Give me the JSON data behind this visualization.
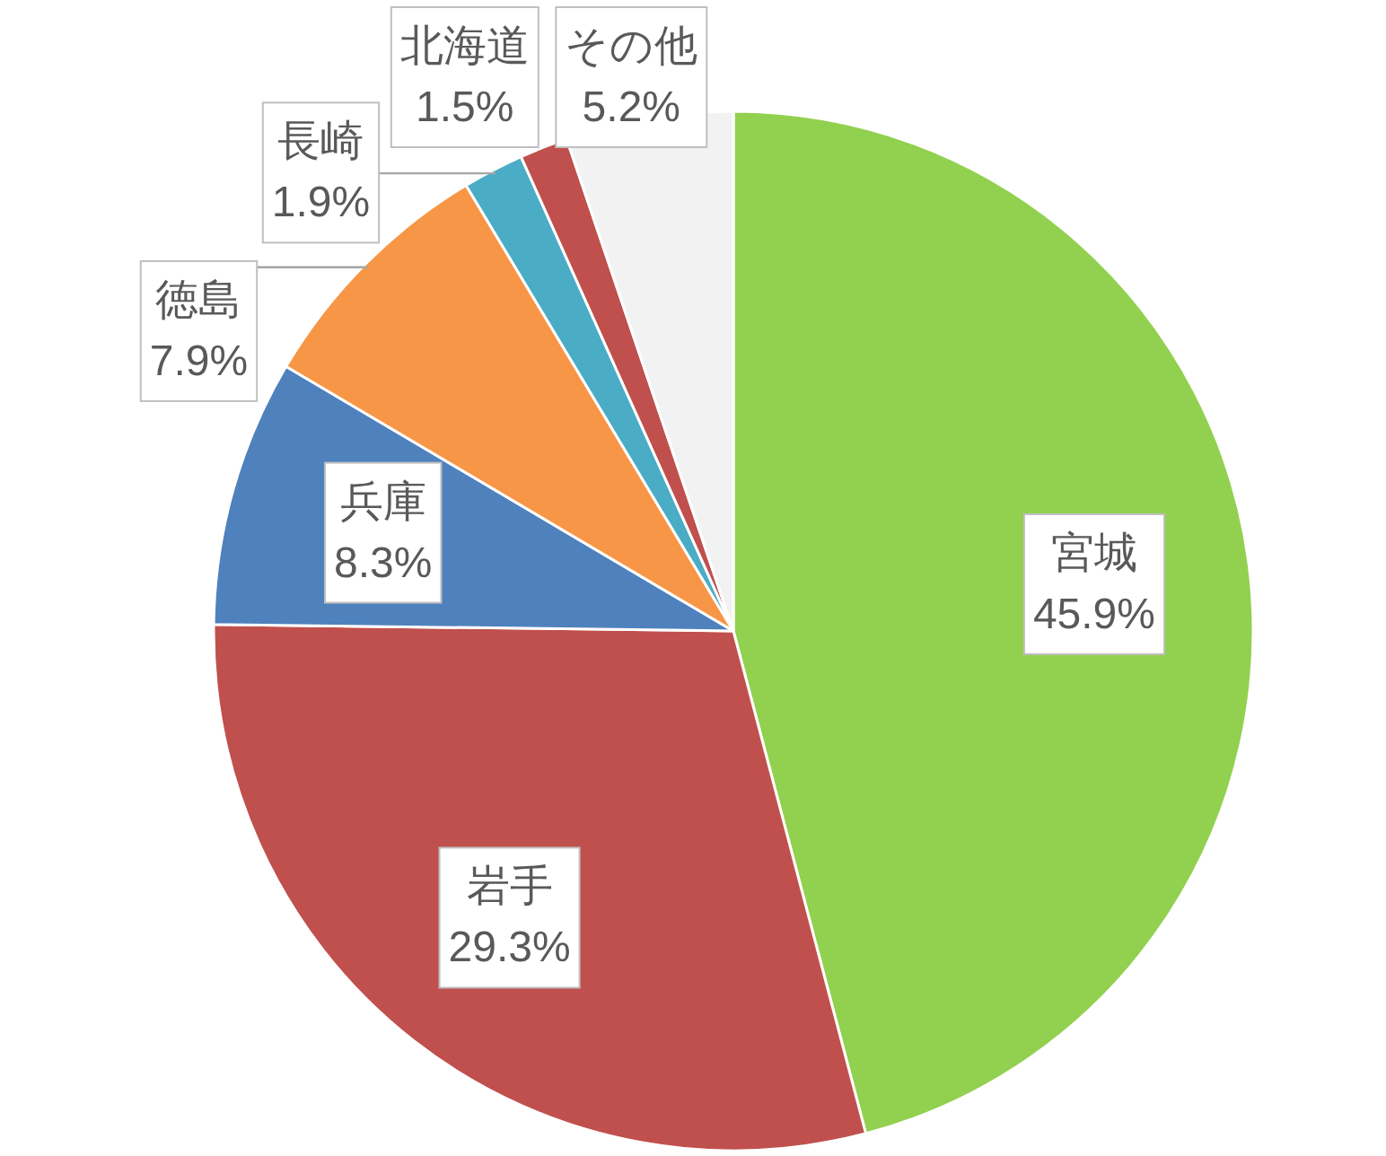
{
  "chart_data": {
    "type": "pie",
    "categories": [
      "宮城",
      "岩手",
      "兵庫",
      "徳島",
      "長崎",
      "北海道",
      "その他"
    ],
    "values": [
      45.9,
      29.3,
      8.3,
      7.9,
      1.9,
      1.5,
      5.2
    ],
    "colors": [
      "#92d050",
      "#c0504d",
      "#4f81bd",
      "#f79646",
      "#4bacc6",
      "#c0504d",
      "#f2f2f2"
    ],
    "value_labels": [
      "45.9%",
      "29.3%",
      "8.3%",
      "7.9%",
      "1.9%",
      "1.5%",
      "5.2%"
    ]
  }
}
